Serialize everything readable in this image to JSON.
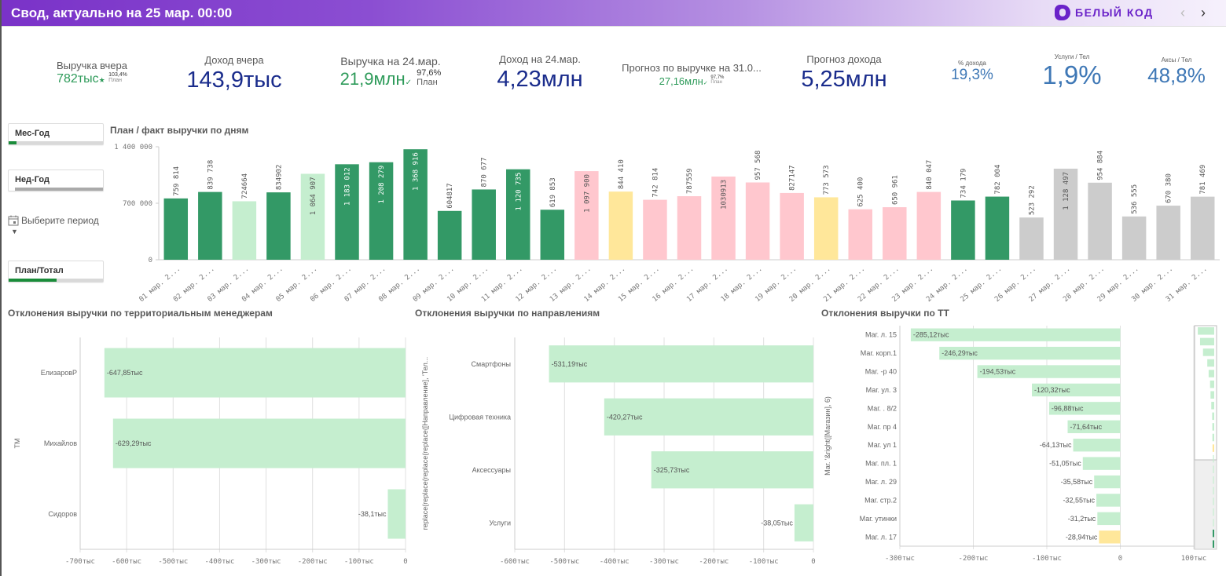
{
  "header": {
    "title": "Свод, актуально на 25 мар. 00:00",
    "logo_text": "БЕЛЫЙ КОД",
    "prev_icon": "chevron-left-icon",
    "next_icon": "chevron-right-icon",
    "prev_glyph": "‹",
    "next_glyph": "›"
  },
  "kpis": {
    "revenue_yesterday": {
      "label": "Выручка вчера",
      "value": "782тыс",
      "icon": "star-icon",
      "icon_glyph": "★",
      "pct": "103,4%",
      "pct_label": "План"
    },
    "income_yesterday": {
      "label": "Доход вчера",
      "value": "143,9тыс"
    },
    "revenue_24": {
      "label": "Выручка на 24.мар.",
      "value": "21,9млн",
      "icon": "check-icon",
      "icon_glyph": "✓",
      "pct": "97,6%",
      "pct_label": "План"
    },
    "income_24": {
      "label": "Доход на 24.мар.",
      "value": "4,23млн"
    },
    "forecast_revenue": {
      "label": "Прогноз по выручке на 31.0...",
      "value": "27,16млн",
      "icon": "check-icon",
      "icon_glyph": "✓",
      "pct": "97,7%",
      "pct_label": "План"
    },
    "forecast_income": {
      "label": "Прогноз дохода",
      "value": "5,25млн"
    },
    "income_pct": {
      "label": "% дохода",
      "value": "19,3%"
    },
    "services_per_phone": {
      "label": "Услуги / Тел",
      "value": "1,9%"
    },
    "accessories_per_phone": {
      "label": "Аксы / Тел",
      "value": "48,8%"
    }
  },
  "filters": {
    "month_year": {
      "label": "Мес-Год",
      "fill": 0.08
    },
    "week_year": {
      "label": "Нед-Год",
      "fill": 0.0
    },
    "period_label": "Выберите период",
    "plan_total": {
      "label": "План/Тотал",
      "fill": 0.5
    }
  },
  "colors": {
    "dark_green": "#339966",
    "light_green": "#c5eecf",
    "pink": "#ffc7ce",
    "yellow": "#ffe79a",
    "gray": "#cccccc",
    "title_purple": "#7a32c8"
  },
  "chart_data": [
    {
      "type": "bar",
      "title": "План / факт выручки по дням",
      "xlabel": "",
      "ylabel": "",
      "ylim": [
        0,
        1400000
      ],
      "yticks": [
        "0",
        "700 000",
        "1 400 000"
      ],
      "ytick_values": [
        0,
        700000,
        1400000
      ],
      "categories": [
        "01 мар. 2...",
        "02 мар. 2...",
        "03 мар. 2...",
        "04 мар. 2...",
        "05 мар. 2...",
        "06 мар. 2...",
        "07 мар. 2...",
        "08 мар. 2...",
        "09 мар. 2...",
        "10 мар. 2...",
        "11 мар. 2...",
        "12 мар. 2...",
        "13 мар. 2...",
        "14 мар. 2...",
        "15 мар. 2...",
        "16 мар. 2...",
        "17 мар. 2...",
        "18 мар. 2...",
        "19 мар. 2...",
        "20 мар. 2...",
        "21 мар. 2...",
        "22 мар. 2...",
        "23 мар. 2...",
        "24 мар. 2...",
        "25 мар. 2...",
        "26 мар. 2...",
        "27 мар. 2...",
        "28 мар. 2...",
        "29 мар. 2...",
        "30 мар. 2...",
        "31 мар. 2..."
      ],
      "values": [
        759814,
        839738,
        724664,
        834902,
        1064907,
        1183012,
        1208279,
        1368916,
        604817,
        870677,
        1120735,
        619853,
        1097900,
        844410,
        742814,
        787559,
        1030913,
        957568,
        827147,
        773573,
        625400,
        650961,
        840047,
        734179,
        782004,
        523292,
        1128497,
        954884,
        536555,
        670380,
        781469
      ],
      "labels": [
        "759 814",
        "839 738",
        "724664",
        "834902",
        "1 064 907",
        "1 183 012",
        "1 208 279",
        "1 368 916",
        "604817",
        "870 677",
        "1 120 735",
        "619 853",
        "1 097 900",
        "844 410",
        "742 814",
        "787559",
        "1030913",
        "957 568",
        "827147",
        "773 573",
        "625 400",
        "650 961",
        "840 047",
        "734 179",
        "782 004",
        "523 292",
        "1 128 497",
        "954 884",
        "536 555",
        "670 380",
        "781 469"
      ],
      "bar_colors": [
        "dark_green",
        "dark_green",
        "light_green",
        "dark_green",
        "light_green",
        "dark_green",
        "dark_green",
        "dark_green",
        "dark_green",
        "dark_green",
        "dark_green",
        "dark_green",
        "pink",
        "yellow",
        "pink",
        "pink",
        "pink",
        "pink",
        "pink",
        "yellow",
        "pink",
        "pink",
        "pink",
        "dark_green",
        "dark_green",
        "gray",
        "gray",
        "gray",
        "gray",
        "gray",
        "gray"
      ],
      "grid": false
    },
    {
      "type": "bar",
      "orientation": "horizontal",
      "title": "Отклонения выручки по территориальным менеджерам",
      "ylabel": "ТМ",
      "xlim": [
        -700,
        0
      ],
      "xticks": [
        "-700тыс",
        "-600тыс",
        "-500тыс",
        "-400тыс",
        "-300тыс",
        "-200тыс",
        "-100тыс",
        "0"
      ],
      "xtick_values": [
        -700,
        -600,
        -500,
        -400,
        -300,
        -200,
        -100,
        0
      ],
      "categories": [
        "ЕлизаровР",
        "Михайлов",
        "Сидоров"
      ],
      "values": [
        -647.85,
        -629.29,
        -38.1
      ],
      "labels": [
        "-647,85тыс",
        "-629,29тыс",
        "-38,1тыс"
      ],
      "bar_colors": [
        "light_green",
        "light_green",
        "light_green"
      ],
      "grid": true
    },
    {
      "type": "bar",
      "orientation": "horizontal",
      "title": "Отклонения выручки по направлениям",
      "ylabel": "replace(replace(replace(replace([Направление], 'Тел...",
      "xlim": [
        -600,
        0
      ],
      "xticks": [
        "-600тыс",
        "-500тыс",
        "-400тыс",
        "-300тыс",
        "-200тыс",
        "-100тыс",
        "0"
      ],
      "xtick_values": [
        -600,
        -500,
        -400,
        -300,
        -200,
        -100,
        0
      ],
      "categories": [
        "Смартфоны",
        "Цифровая техника",
        "Аксессуары",
        "Услуги"
      ],
      "values": [
        -531.19,
        -420.27,
        -325.73,
        -38.05
      ],
      "labels": [
        "-531,19тыс",
        "-420,27тыс",
        "-325,73тыс",
        "-38,05тыс"
      ],
      "bar_colors": [
        "light_green",
        "light_green",
        "light_green",
        "light_green"
      ],
      "grid": true
    },
    {
      "type": "bar",
      "orientation": "horizontal",
      "title": "Отклонения выручки по ТТ",
      "ylabel": "Маг. '&right([Магазин], 6)",
      "xlim": [
        -300,
        100
      ],
      "xticks": [
        "-300тыс",
        "-200тыс",
        "-100тыс",
        "0",
        "100тыс"
      ],
      "xtick_values": [
        -300,
        -200,
        -100,
        0,
        100
      ],
      "categories": [
        "Маг. л. 15",
        "Маг. корп.1",
        "Маг. -р 40",
        "Маг. ул. 3",
        "Маг. . 8/2",
        "Маг. пр 4",
        "Маг. ул 1",
        "Маг. пл. 1",
        "Маг. л. 29",
        "Маг. стр.2",
        "Маг. утинки",
        "Маг. л. 17"
      ],
      "values": [
        -285.12,
        -246.29,
        -194.53,
        -120.32,
        -96.88,
        -71.64,
        -64.13,
        -51.05,
        -35.58,
        -32.55,
        -31.2,
        -28.94
      ],
      "labels": [
        "-285,12тыс",
        "-246,29тыс",
        "-194,53тыс",
        "-120,32тыс",
        "-96,88тыс",
        "-71,64тыс",
        "-64,13тыс",
        "-51,05тыс",
        "-35,58тыс",
        "-32,55тыс",
        "-31,2тыс",
        "-28,94тыс"
      ],
      "bar_colors": [
        "light_green",
        "light_green",
        "light_green",
        "light_green",
        "light_green",
        "light_green",
        "light_green",
        "light_green",
        "light_green",
        "light_green",
        "light_green",
        "yellow"
      ],
      "grid": true,
      "minimap": {
        "visible_fraction": 0.6,
        "values": [
          -285.12,
          -246.29,
          -194.53,
          -120.32,
          -96.88,
          -71.64,
          -64.13,
          -51.05,
          -35.58,
          -32.55,
          -31.2,
          -28.94,
          -25,
          -22,
          -18,
          -16,
          -12,
          -8,
          -5,
          20,
          22
        ],
        "bar_colors": [
          "light_green",
          "light_green",
          "light_green",
          "light_green",
          "light_green",
          "light_green",
          "light_green",
          "light_green",
          "light_green",
          "light_green",
          "light_green",
          "yellow",
          "light_green",
          "light_green",
          "light_green",
          "light_green",
          "light_green",
          "light_green",
          "light_green",
          "dark_green",
          "dark_green"
        ]
      }
    }
  ]
}
